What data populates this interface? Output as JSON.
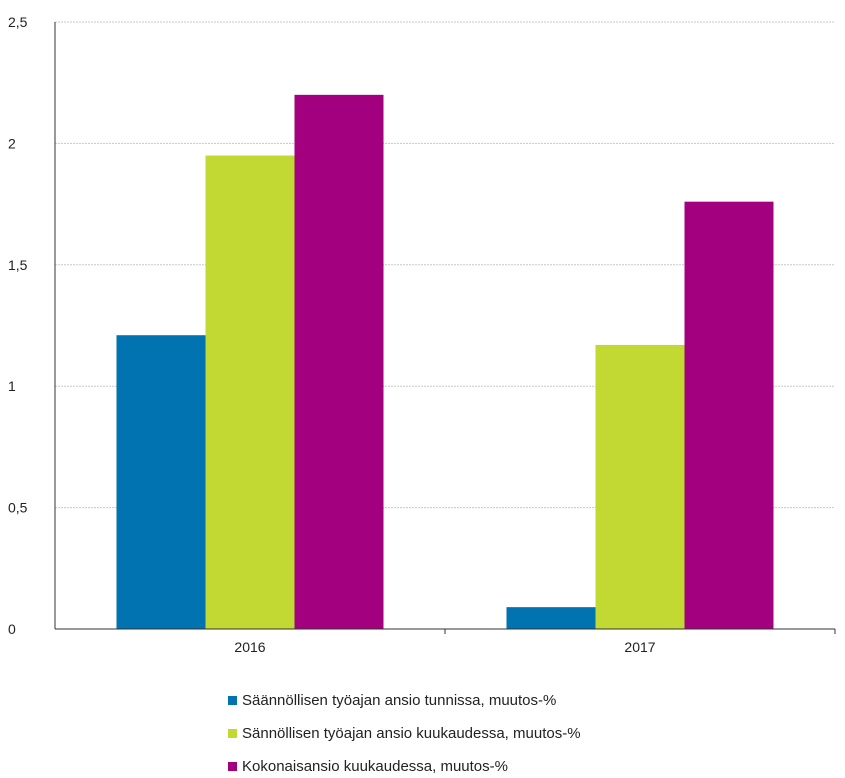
{
  "chart_data": {
    "type": "bar",
    "categories": [
      "2016",
      "2017"
    ],
    "series": [
      {
        "name": "Säännöllisen työajan ansio tunnissa, muutos-%",
        "color": "#0073b0",
        "values": [
          1.21,
          0.09
        ]
      },
      {
        "name": "Sännöllisen työajan ansio kuukaudessa, muutos-%",
        "color": "#c2d833",
        "values": [
          1.95,
          1.17
        ]
      },
      {
        "name": "Kokonaisansio kuukaudessa, muutos-%",
        "color": "#a30080",
        "values": [
          2.2,
          1.76
        ]
      }
    ],
    "yticks": [
      "0",
      "0,5",
      "1",
      "1,5",
      "2",
      "2,5"
    ],
    "ylim": [
      0,
      2.5
    ],
    "grid": true,
    "legend_position": "bottom",
    "title": "",
    "xlabel": "",
    "ylabel": ""
  }
}
